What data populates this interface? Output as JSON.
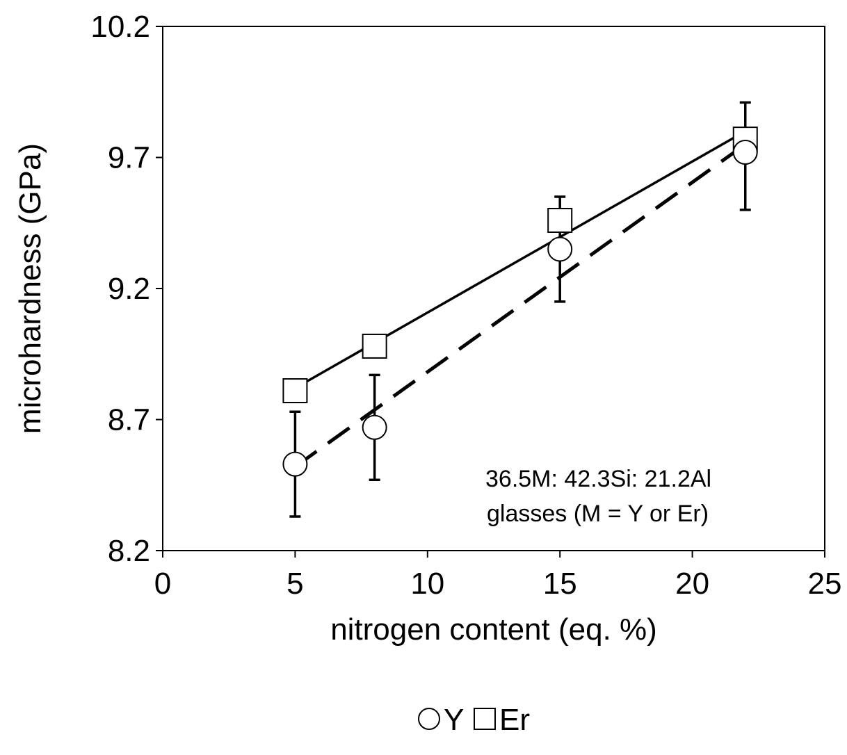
{
  "chart_data": {
    "type": "scatter",
    "xlabel": "nitrogen content (eq. %)",
    "ylabel": "microhardness (GPa)",
    "xlim": [
      0,
      25
    ],
    "ylim": [
      8.2,
      10.2
    ],
    "x_ticks": [
      "0",
      "5",
      "10",
      "15",
      "20",
      "25"
    ],
    "y_ticks": [
      "8.2",
      "8.7",
      "9.2",
      "9.7",
      "10.2"
    ],
    "grid": false,
    "legend_position": "bottom",
    "annotation": [
      "36.5M: 42.3Si: 21.2Al",
      "glasses (M = Y or Er)"
    ],
    "series": [
      {
        "name": "Y",
        "marker": "circle",
        "fit_line": "dashed",
        "points": [
          {
            "x": 5,
            "y": 8.53,
            "err_low": 8.33,
            "err_high": 8.73
          },
          {
            "x": 8,
            "y": 8.67,
            "err_low": 8.47,
            "err_high": 8.87
          },
          {
            "x": 15,
            "y": 9.35,
            "err_low": 9.15,
            "err_high": 9.55
          },
          {
            "x": 22,
            "y": 9.72,
            "err_low": 9.5,
            "err_high": 9.91
          }
        ],
        "fit": [
          [
            5,
            8.52
          ],
          [
            22,
            9.75
          ]
        ]
      },
      {
        "name": "Er",
        "marker": "square",
        "fit_line": "solid",
        "points": [
          {
            "x": 5,
            "y": 8.81
          },
          {
            "x": 8,
            "y": 8.98
          },
          {
            "x": 15,
            "y": 9.46
          },
          {
            "x": 22,
            "y": 9.77
          }
        ],
        "fit": [
          [
            5,
            8.82
          ],
          [
            22,
            9.8
          ]
        ]
      }
    ],
    "colors": {
      "axis": "#000000",
      "marker_fill": "#ffffff",
      "line": "#000000"
    }
  }
}
